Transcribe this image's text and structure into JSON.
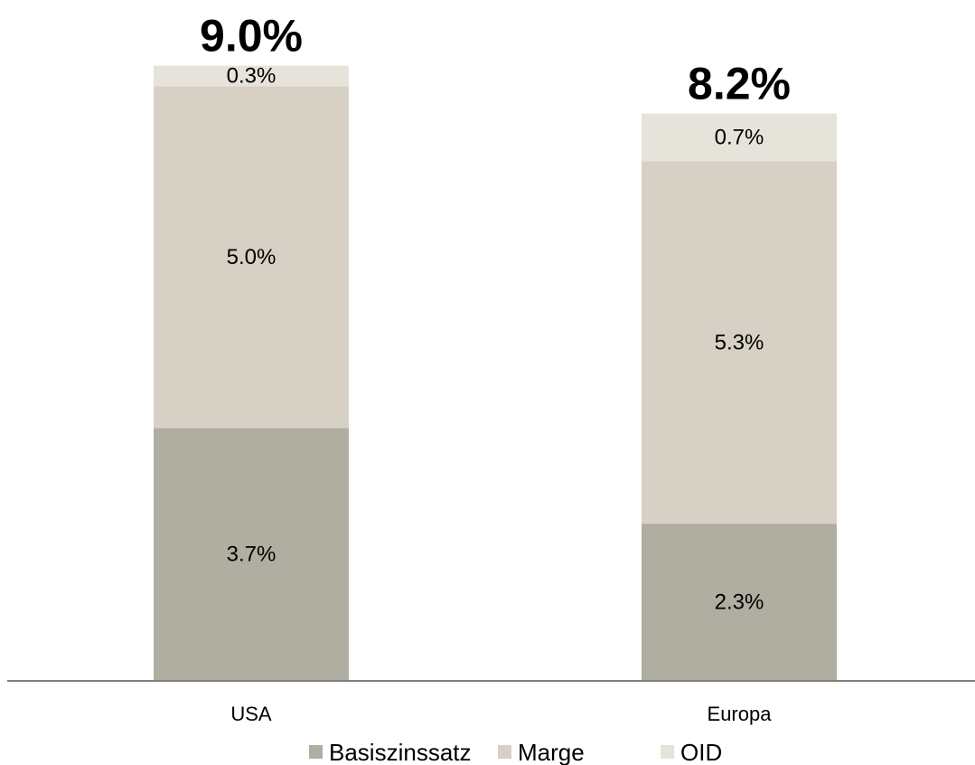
{
  "chart_data": {
    "type": "bar",
    "stacked": true,
    "categories": [
      "USA",
      "Europa"
    ],
    "series": [
      {
        "name": "Basiszinssatz",
        "values": [
          3.7,
          2.3
        ],
        "labels": [
          "3.7%",
          "2.3%"
        ],
        "color": "#b0ada1"
      },
      {
        "name": "Marge",
        "values": [
          5.0,
          5.3
        ],
        "labels": [
          "5.0%",
          "5.3%"
        ],
        "color": "#d6d1c4"
      },
      {
        "name": "OID",
        "values": [
          0.3,
          0.7
        ],
        "labels": [
          "0.3%",
          "0.7%"
        ],
        "color": "#e6e4da"
      }
    ],
    "totals": [
      9.0,
      8.2
    ],
    "total_labels": [
      "9.0%",
      "8.2%"
    ],
    "title": "",
    "xlabel": "",
    "ylabel": "",
    "ylim": [
      0,
      9.0
    ],
    "grid": false,
    "legend_position": "bottom",
    "axis_color": "#7f7f7f"
  }
}
